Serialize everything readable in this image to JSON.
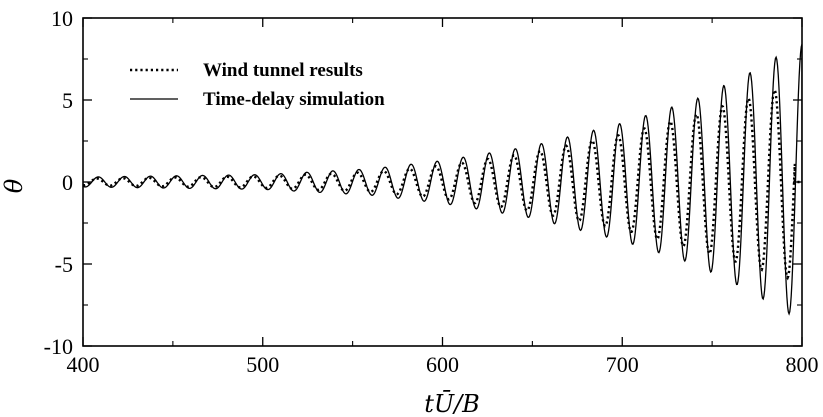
{
  "chart_data": {
    "type": "line",
    "title": "",
    "xlabel": "tŪ/B",
    "ylabel": "θ",
    "xlim": [
      400,
      800
    ],
    "ylim": [
      -10,
      10
    ],
    "x_ticks": [
      "400",
      "500",
      "600",
      "700",
      "800"
    ],
    "y_ticks": [
      "10",
      "5",
      "0",
      "-5",
      "-10"
    ],
    "grid": false,
    "legend_position": "top-left",
    "oscillation_period": 14.5,
    "series": [
      {
        "name": "Wind tunnel results",
        "style": "dotted",
        "color": "#000000",
        "envelope": {
          "x": [
            400,
            500,
            560,
            600,
            650,
            700,
            740,
            770,
            790,
            800
          ],
          "amplitude": [
            0.2,
            0.35,
            0.6,
            1.0,
            1.8,
            2.9,
            4.1,
            5.1,
            5.8,
            6.0
          ]
        },
        "ends_at_x": 796
      },
      {
        "name": "Time-delay simulation",
        "style": "solid",
        "color": "#000000",
        "envelope": {
          "x": [
            400,
            500,
            560,
            600,
            650,
            700,
            740,
            770,
            790,
            800
          ],
          "amplitude": [
            0.3,
            0.45,
            0.8,
            1.3,
            2.2,
            3.6,
            5.0,
            6.6,
            7.9,
            8.4
          ]
        },
        "ends_at_x": 800
      }
    ]
  }
}
